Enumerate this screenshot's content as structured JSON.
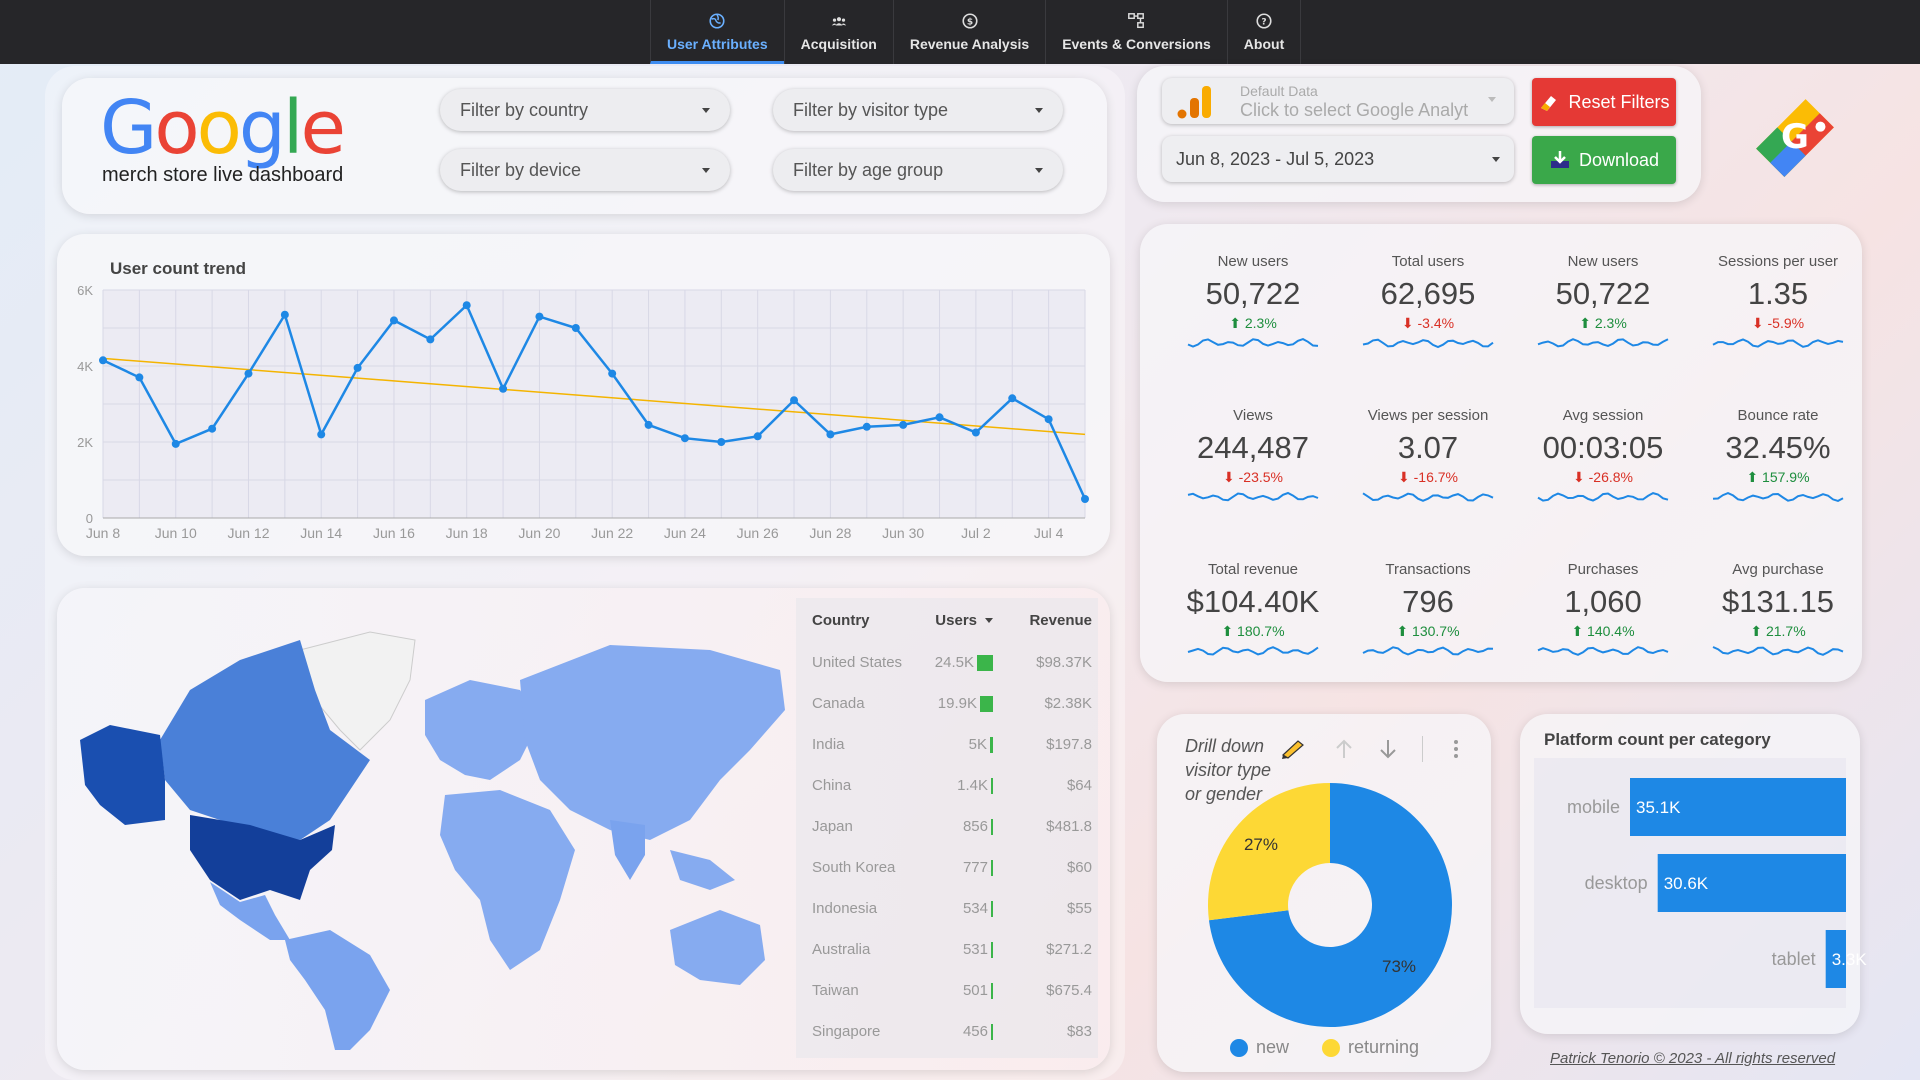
{
  "nav": {
    "tabs": [
      {
        "label": "User Attributes",
        "icon": "globe-icon"
      },
      {
        "label": "Acquisition",
        "icon": "people-icon"
      },
      {
        "label": "Revenue Analysis",
        "icon": "dollar-icon"
      },
      {
        "label": "Events & Conversions",
        "icon": "flow-icon"
      },
      {
        "label": "About",
        "icon": "help-icon"
      }
    ]
  },
  "header": {
    "logo": "Google",
    "subtitle": "merch store live dashboard"
  },
  "filters": {
    "country": "Filter by country",
    "visitor_type": "Filter by visitor type",
    "device": "Filter by device",
    "age_group": "Filter by age group"
  },
  "controls": {
    "data_source_label": "Default Data",
    "data_source_placeholder": "Click to select Google Analyt",
    "date_range": "Jun 8, 2023 - Jul 5, 2023",
    "reset_label": "Reset Filters",
    "download_label": "Download"
  },
  "line_chart": {
    "title": "User count trend",
    "chart_data": {
      "type": "line",
      "title": "User count trend",
      "x": [
        "Jun 8",
        "Jun 9",
        "Jun 10",
        "Jun 11",
        "Jun 12",
        "Jun 13",
        "Jun 14",
        "Jun 15",
        "Jun 16",
        "Jun 17",
        "Jun 18",
        "Jun 19",
        "Jun 20",
        "Jun 21",
        "Jun 22",
        "Jun 23",
        "Jun 24",
        "Jun 25",
        "Jun 26",
        "Jun 27",
        "Jun 28",
        "Jun 29",
        "Jun 30",
        "Jul 1",
        "Jul 2",
        "Jul 3",
        "Jul 4",
        "Jul 5"
      ],
      "xticks": [
        "Jun 8",
        "Jun 10",
        "Jun 12",
        "Jun 14",
        "Jun 16",
        "Jun 18",
        "Jun 20",
        "Jun 22",
        "Jun 24",
        "Jun 26",
        "Jun 28",
        "Jun 30",
        "Jul 2",
        "Jul 4"
      ],
      "yticks": [
        "0",
        "2K",
        "4K",
        "6K"
      ],
      "series": [
        {
          "values": [
            4150,
            3700,
            1950,
            2350,
            3800,
            5350,
            2200,
            3950,
            5200,
            4700,
            5600,
            3400,
            5300,
            5000,
            3800,
            2450,
            2100,
            2000,
            2150,
            3100,
            2200,
            2400,
            2450,
            2650,
            2250,
            3150,
            2600,
            500
          ]
        }
      ],
      "trendline": {
        "start": 4200,
        "end": 2200
      },
      "ylim": [
        0,
        6000
      ],
      "grid": true,
      "colors": {
        "line": "#1e88e5",
        "trend": "#f4b400"
      }
    }
  },
  "countries": {
    "headers": {
      "country": "Country",
      "users": "Users",
      "revenue": "Revenue"
    },
    "rows": [
      {
        "country": "United States",
        "users": "24.5K",
        "users_value": 24500,
        "revenue": "$98.37K"
      },
      {
        "country": "Canada",
        "users": "19.9K",
        "users_value": 19900,
        "revenue": "$2.38K"
      },
      {
        "country": "India",
        "users": "5K",
        "users_value": 5000,
        "revenue": "$197.8"
      },
      {
        "country": "China",
        "users": "1.4K",
        "users_value": 1400,
        "revenue": "$64"
      },
      {
        "country": "Japan",
        "users": "856",
        "users_value": 856,
        "revenue": "$481.8"
      },
      {
        "country": "South Korea",
        "users": "777",
        "users_value": 777,
        "revenue": "$60"
      },
      {
        "country": "Indonesia",
        "users": "534",
        "users_value": 534,
        "revenue": "$55"
      },
      {
        "country": "Australia",
        "users": "531",
        "users_value": 531,
        "revenue": "$271.2"
      },
      {
        "country": "Taiwan",
        "users": "501",
        "users_value": 501,
        "revenue": "$675.4"
      },
      {
        "country": "Singapore",
        "users": "456",
        "users_value": 456,
        "revenue": "$83"
      }
    ]
  },
  "kpis": [
    {
      "label": "New users",
      "value": "50,722",
      "change": "2.3%",
      "dir": "up"
    },
    {
      "label": "Total users",
      "value": "62,695",
      "change": "-3.4%",
      "dir": "down"
    },
    {
      "label": "New users",
      "value": "50,722",
      "change": "2.3%",
      "dir": "up"
    },
    {
      "label": "Sessions per user",
      "value": "1.35",
      "change": "-5.9%",
      "dir": "down"
    },
    {
      "label": "Views",
      "value": "244,487",
      "change": "-23.5%",
      "dir": "down"
    },
    {
      "label": "Views per session",
      "value": "3.07",
      "change": "-16.7%",
      "dir": "down"
    },
    {
      "label": "Avg session",
      "value": "00:03:05",
      "change": "-26.8%",
      "dir": "down"
    },
    {
      "label": "Bounce rate",
      "value": "32.45%",
      "change": "157.9%",
      "dir": "up"
    },
    {
      "label": "Total revenue",
      "value": "$104.40K",
      "change": "180.7%",
      "dir": "up"
    },
    {
      "label": "Transactions",
      "value": "796",
      "change": "130.7%",
      "dir": "up"
    },
    {
      "label": "Purchases",
      "value": "1,060",
      "change": "140.4%",
      "dir": "up"
    },
    {
      "label": "Avg purchase",
      "value": "$131.15",
      "change": "21.7%",
      "dir": "up"
    }
  ],
  "donut": {
    "drill_text": [
      "Drill down",
      "visitor type",
      "or gender"
    ],
    "chart_data": {
      "type": "pie",
      "series": [
        {
          "name": "new",
          "value": 73,
          "label": "73%",
          "color": "#1e88e5"
        },
        {
          "name": "returning",
          "value": 27,
          "label": "27%",
          "color": "#fdd835"
        }
      ]
    }
  },
  "platform": {
    "title": "Platform count per category",
    "chart_data": {
      "type": "bar",
      "title": "Platform count per category",
      "categories": [
        "mobile",
        "desktop",
        "tablet"
      ],
      "values": [
        35100,
        30600,
        3300
      ],
      "labels": [
        "35.1K",
        "30.6K",
        "3.3K"
      ],
      "color": "#1e88e5"
    }
  },
  "footer": "Patrick Tenorio © 2023 - All rights reserved"
}
